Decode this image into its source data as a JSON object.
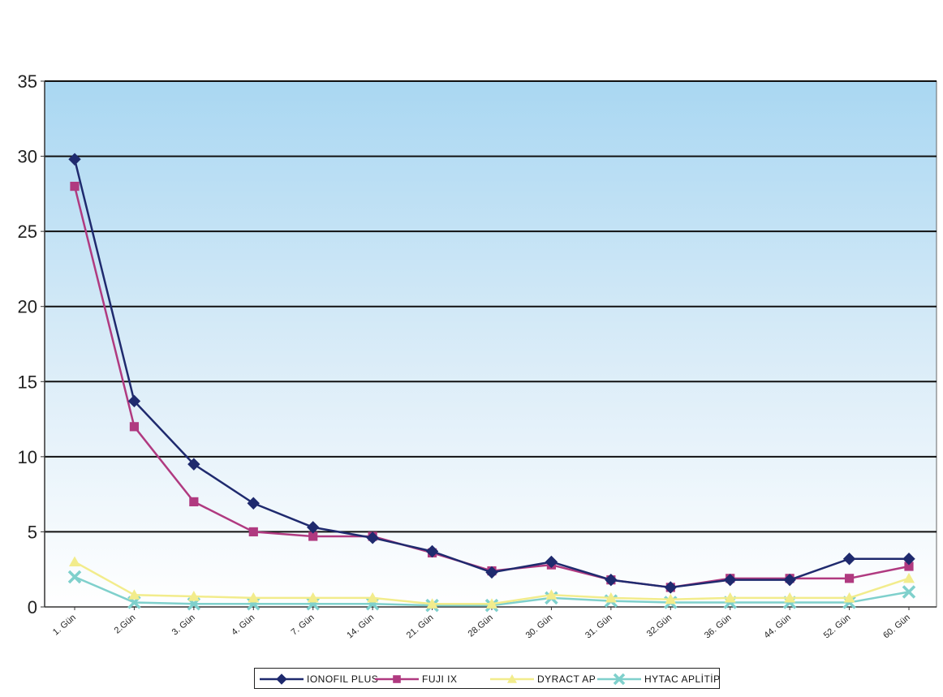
{
  "chart_data": {
    "type": "line",
    "categories": [
      "1. Gün",
      "2.Gün",
      "3. Gün",
      "4. Gün",
      "7. Gün",
      "14. Gün",
      "21. Gün",
      "28.Gün",
      "30. Gün",
      "31. Gün",
      "32.Gün",
      "36. Gün",
      "44. Gün",
      "52. Gün",
      "60. Gün"
    ],
    "series": [
      {
        "name": "IONOFIL PLUS",
        "color": "#1f2a6e",
        "marker": "diamond",
        "values": [
          29.8,
          13.7,
          9.5,
          6.9,
          5.3,
          4.6,
          3.7,
          2.3,
          3.0,
          1.8,
          1.3,
          1.8,
          1.8,
          3.2,
          3.2
        ]
      },
      {
        "name": "FUJI IX",
        "color": "#b03a80",
        "marker": "square",
        "values": [
          28.0,
          12.0,
          7.0,
          5.0,
          4.7,
          4.7,
          3.6,
          2.4,
          2.8,
          1.8,
          1.3,
          1.9,
          1.9,
          1.9,
          2.7
        ]
      },
      {
        "name": "DYRACT AP",
        "color": "#f2ec8c",
        "marker": "triangle",
        "values": [
          3.0,
          0.8,
          0.7,
          0.6,
          0.6,
          0.6,
          0.2,
          0.2,
          0.8,
          0.6,
          0.5,
          0.6,
          0.6,
          0.6,
          1.9
        ]
      },
      {
        "name": "HYTAC APLİTİP",
        "color": "#7fd0cc",
        "marker": "x",
        "values": [
          2.0,
          0.3,
          0.2,
          0.2,
          0.2,
          0.2,
          0.1,
          0.1,
          0.6,
          0.4,
          0.3,
          0.3,
          0.3,
          0.3,
          1.0
        ]
      }
    ],
    "title": "",
    "xlabel": "",
    "ylabel": "",
    "ylim": [
      0,
      35
    ],
    "yticks": [
      "0",
      "5",
      "10",
      "15",
      "20",
      "25",
      "30",
      "35"
    ],
    "grid": true,
    "legend_position": "bottom",
    "plot_background": "#cfe6f5"
  }
}
